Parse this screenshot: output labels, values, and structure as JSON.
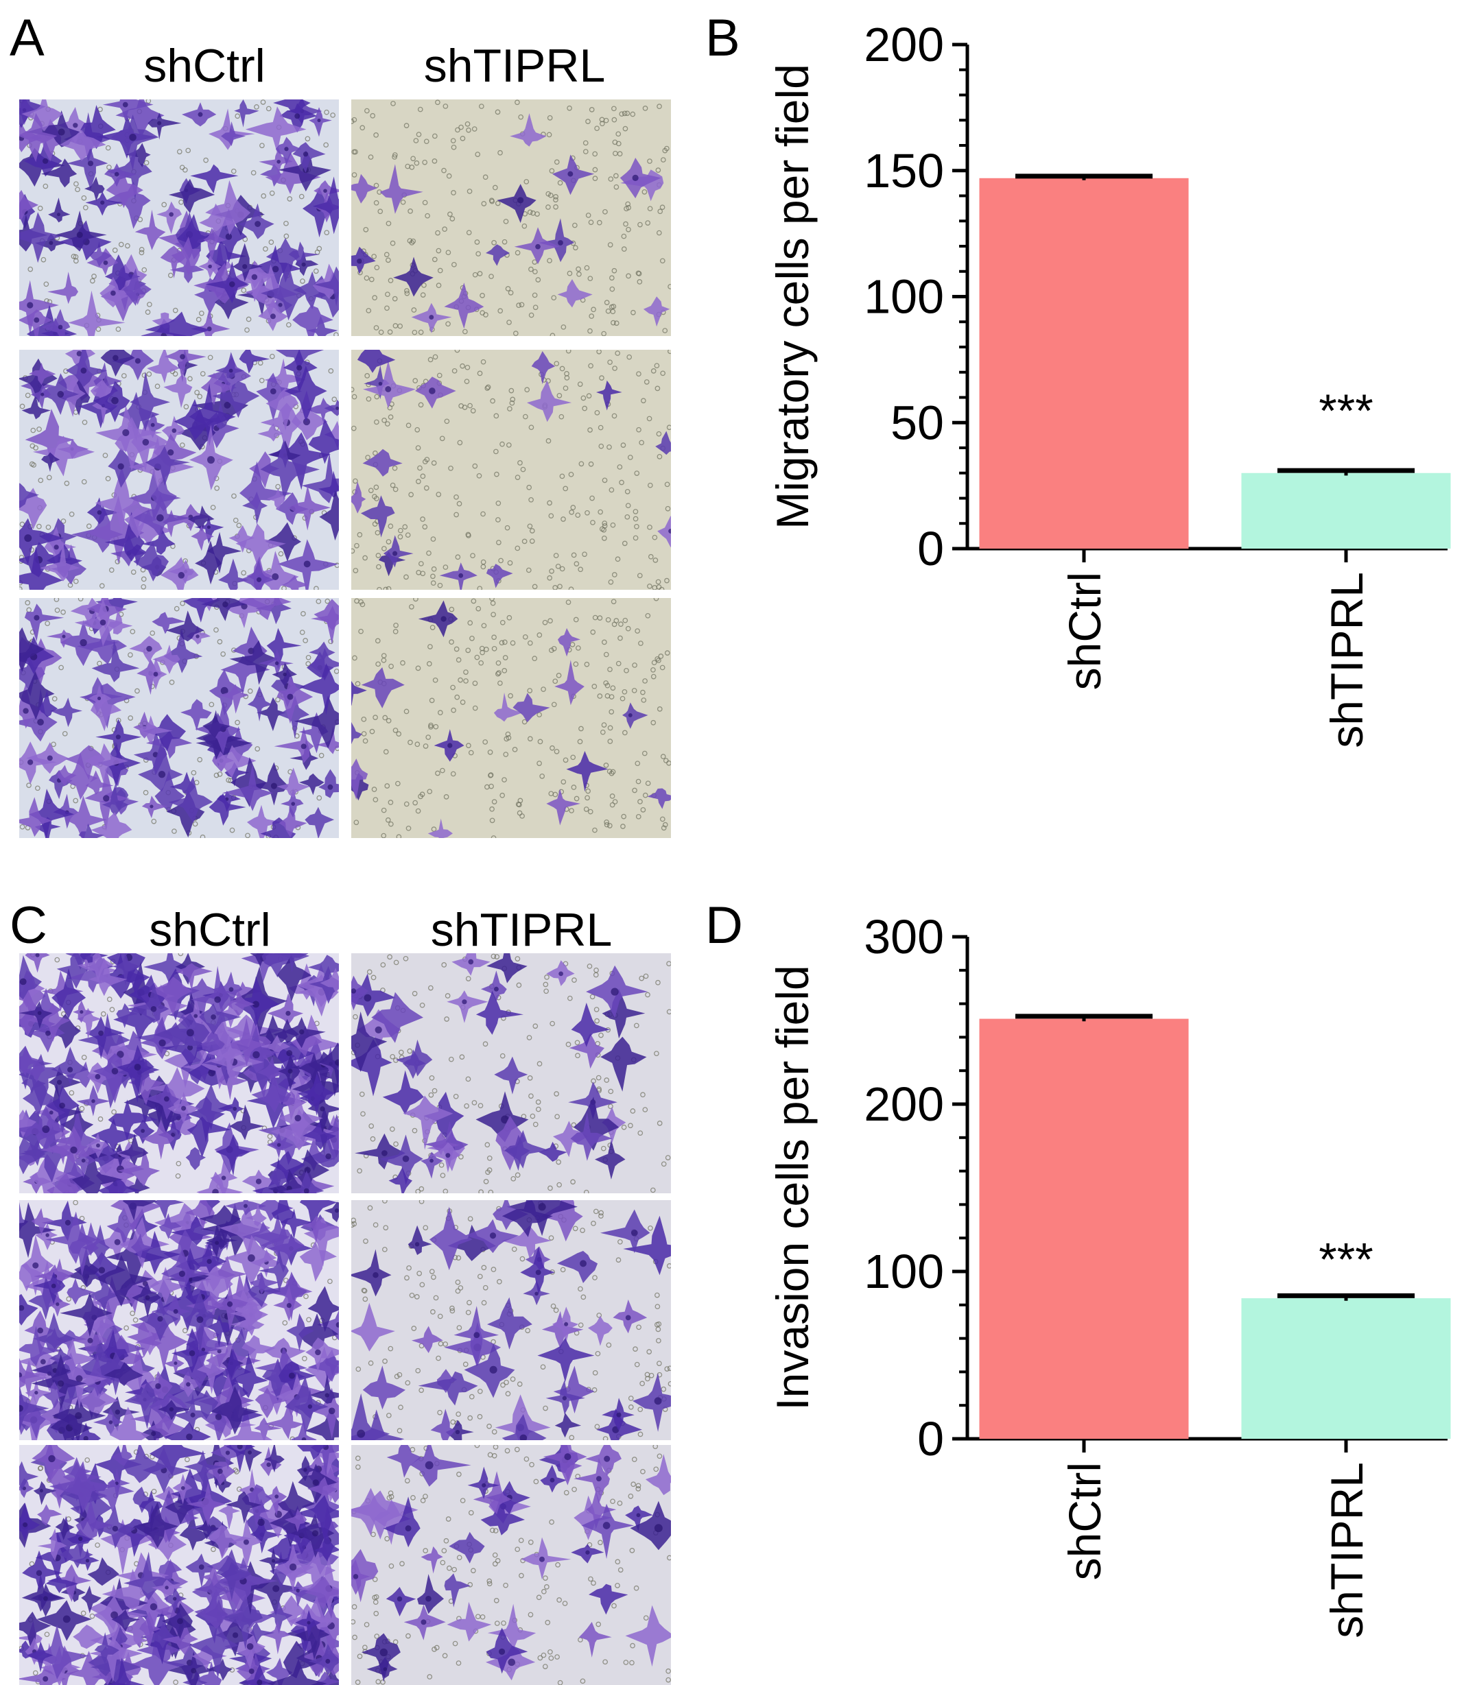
{
  "panels": {
    "a": {
      "letter": "A",
      "columns": [
        "shCtrl",
        "shTIPRL"
      ]
    },
    "b": {
      "letter": "B"
    },
    "c": {
      "letter": "C",
      "columns": [
        "shCtrl",
        "shTIPRL"
      ]
    },
    "d": {
      "letter": "D"
    }
  },
  "colors": {
    "shCtrl_bar": "#FA8080",
    "shTIPRL_bar": "#B3F5DE",
    "control_stain_bg": "#D9DEEA",
    "knockdown_stain_bg": "#D8D6C4",
    "cell_violet": "#5B3CB0"
  },
  "chart_data": [
    {
      "type": "bar",
      "panel": "B",
      "categories": [
        "shCtrl",
        "shTIPRL"
      ],
      "values": [
        147,
        30
      ],
      "errors": [
        0.8,
        1.0
      ],
      "ylabel": "Migratory cells per field",
      "ylim": [
        0,
        200
      ],
      "yticks": [
        0,
        50,
        100,
        150,
        200
      ],
      "annotations": [
        "",
        "***"
      ],
      "bar_colors": [
        "#FA8080",
        "#B3F5DE"
      ]
    },
    {
      "type": "bar",
      "panel": "D",
      "categories": [
        "shCtrl",
        "shTIPRL"
      ],
      "values": [
        251,
        84
      ],
      "errors": [
        1.5,
        1.5
      ],
      "ylabel": "Invasion cells per field",
      "ylim": [
        0,
        300
      ],
      "yticks": [
        0,
        100,
        200,
        300
      ],
      "annotations": [
        "",
        "***"
      ],
      "bar_colors": [
        "#FA8080",
        "#B3F5DE"
      ]
    }
  ]
}
